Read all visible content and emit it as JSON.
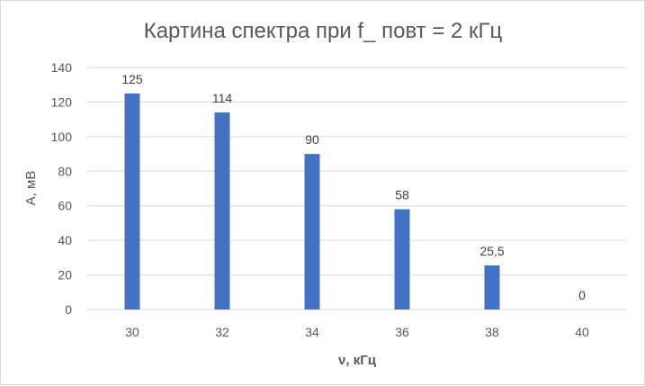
{
  "chart_data": {
    "type": "bar",
    "title": "Картина спектра при  f_ повт = 2 кГц",
    "xlabel": "ν, кГц",
    "ylabel": "А, мВ",
    "categories": [
      "30",
      "32",
      "34",
      "36",
      "38",
      "40"
    ],
    "values": [
      125,
      114,
      90,
      58,
      25.5,
      0
    ],
    "data_labels": [
      "125",
      "114",
      "90",
      "58",
      "25,5",
      "0"
    ],
    "yticks": [
      0,
      20,
      40,
      60,
      80,
      100,
      120,
      140
    ],
    "ylim": [
      0,
      140
    ],
    "grid": true,
    "legend": "none",
    "bar_color": "#4472c4"
  }
}
